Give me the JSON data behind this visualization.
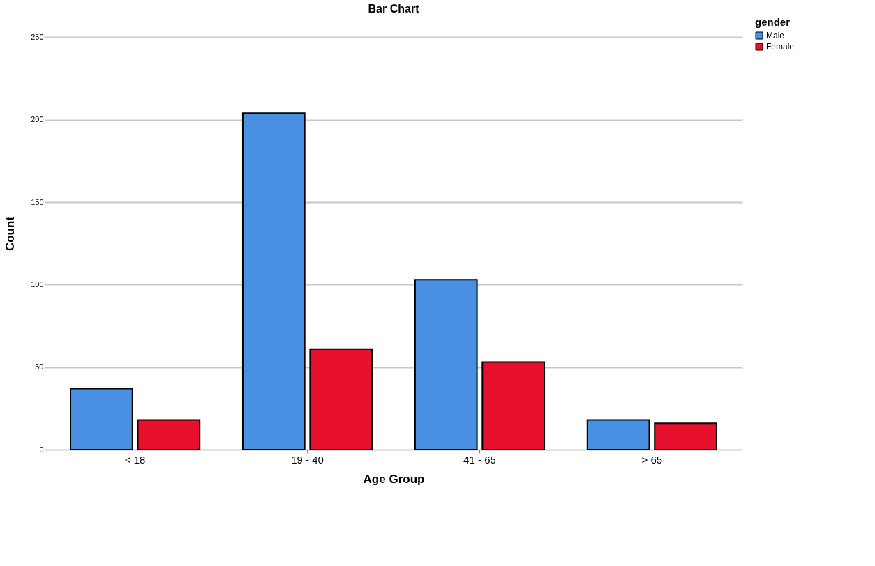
{
  "chart_data": {
    "type": "bar",
    "title": "Bar Chart",
    "xlabel": "Age Group",
    "ylabel": "Count",
    "legend_title": "gender",
    "categories": [
      "< 18",
      "19 - 40",
      "41 - 65",
      "> 65"
    ],
    "series": [
      {
        "name": "Male",
        "color": "#4a90e2",
        "values": [
          37,
          204,
          103,
          18
        ]
      },
      {
        "name": "Female",
        "color": "#e8112d",
        "values": [
          18,
          61,
          53,
          16
        ]
      }
    ],
    "ylim": [
      0,
      262
    ],
    "yticks": [
      0,
      50,
      100,
      150,
      200,
      250
    ],
    "grid": "y",
    "legend": "top right"
  }
}
